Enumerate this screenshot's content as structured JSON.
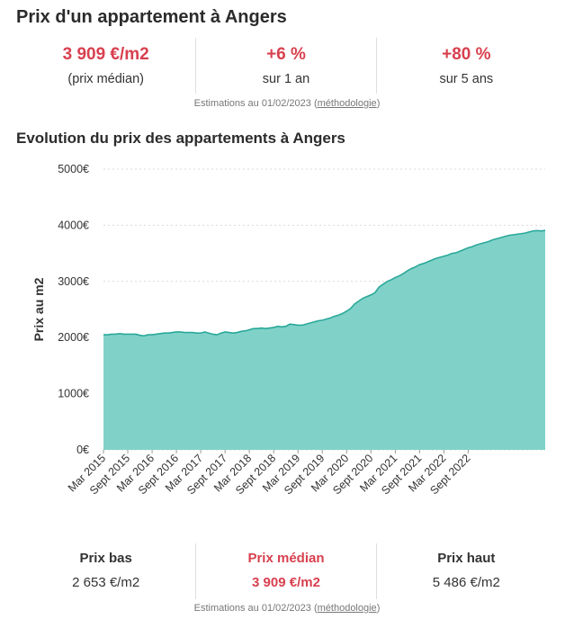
{
  "title": "Prix d'un appartement à Angers",
  "summary": {
    "median_value": "3 909 €/m2",
    "median_label": "(prix médian)",
    "change_1y_value": "+6 %",
    "change_1y_label": "sur 1 an",
    "change_5y_value": "+80 %",
    "change_5y_label": "sur 5 ans"
  },
  "estimation_note": {
    "prefix": "Estimations au 01/02/2023 (",
    "link": "méthodologie",
    "suffix": ")"
  },
  "chart_title": "Evolution du prix des appartements à Angers",
  "chart_data": {
    "type": "area",
    "title": "Evolution du prix des appartements à Angers",
    "xlabel": "",
    "ylabel": "Prix au m2",
    "ylim": [
      0,
      5000
    ],
    "y_ticks": [
      0,
      1000,
      2000,
      3000,
      4000,
      5000
    ],
    "y_tick_labels": [
      "0€",
      "1000€",
      "2000€",
      "3000€",
      "4000€",
      "5000€"
    ],
    "x_tick_labels": [
      "Mar 2015",
      "Sept 2015",
      "Mar 2016",
      "Sept 2016",
      "Mar 2017",
      "Sept 2017",
      "Mar 2018",
      "Sept 2018",
      "Mar 2019",
      "Sept 2019",
      "Mar 2020",
      "Sept 2020",
      "Mar 2021",
      "Sept 2021",
      "Mar 2022",
      "Sept 2022"
    ],
    "x_start": "Mar 2015",
    "x_step": "1 month",
    "color": "#80d2c8",
    "line_color": "#2aa89a",
    "grid": true,
    "series": [
      {
        "name": "Prix au m2",
        "values": [
          2050,
          2050,
          2060,
          2060,
          2070,
          2060,
          2060,
          2060,
          2060,
          2040,
          2030,
          2050,
          2050,
          2060,
          2070,
          2080,
          2080,
          2090,
          2100,
          2100,
          2090,
          2090,
          2090,
          2080,
          2080,
          2100,
          2080,
          2060,
          2050,
          2080,
          2100,
          2090,
          2080,
          2090,
          2110,
          2120,
          2140,
          2160,
          2160,
          2170,
          2160,
          2170,
          2180,
          2200,
          2190,
          2200,
          2240,
          2230,
          2220,
          2220,
          2240,
          2260,
          2280,
          2300,
          2310,
          2330,
          2350,
          2380,
          2400,
          2430,
          2470,
          2520,
          2600,
          2650,
          2700,
          2730,
          2760,
          2800,
          2900,
          2950,
          3000,
          3030,
          3070,
          3100,
          3140,
          3190,
          3230,
          3260,
          3300,
          3320,
          3350,
          3380,
          3410,
          3430,
          3450,
          3470,
          3500,
          3510,
          3540,
          3570,
          3600,
          3620,
          3650,
          3670,
          3690,
          3710,
          3740,
          3760,
          3780,
          3800,
          3820,
          3830,
          3840,
          3850,
          3860,
          3880,
          3900,
          3905,
          3900,
          3909
        ]
      }
    ]
  },
  "price_range": {
    "low_label": "Prix bas",
    "low_value": "2 653 €/m2",
    "median_label": "Prix médian",
    "median_value": "3 909 €/m2",
    "high_label": "Prix haut",
    "high_value": "5 486 €/m2"
  }
}
